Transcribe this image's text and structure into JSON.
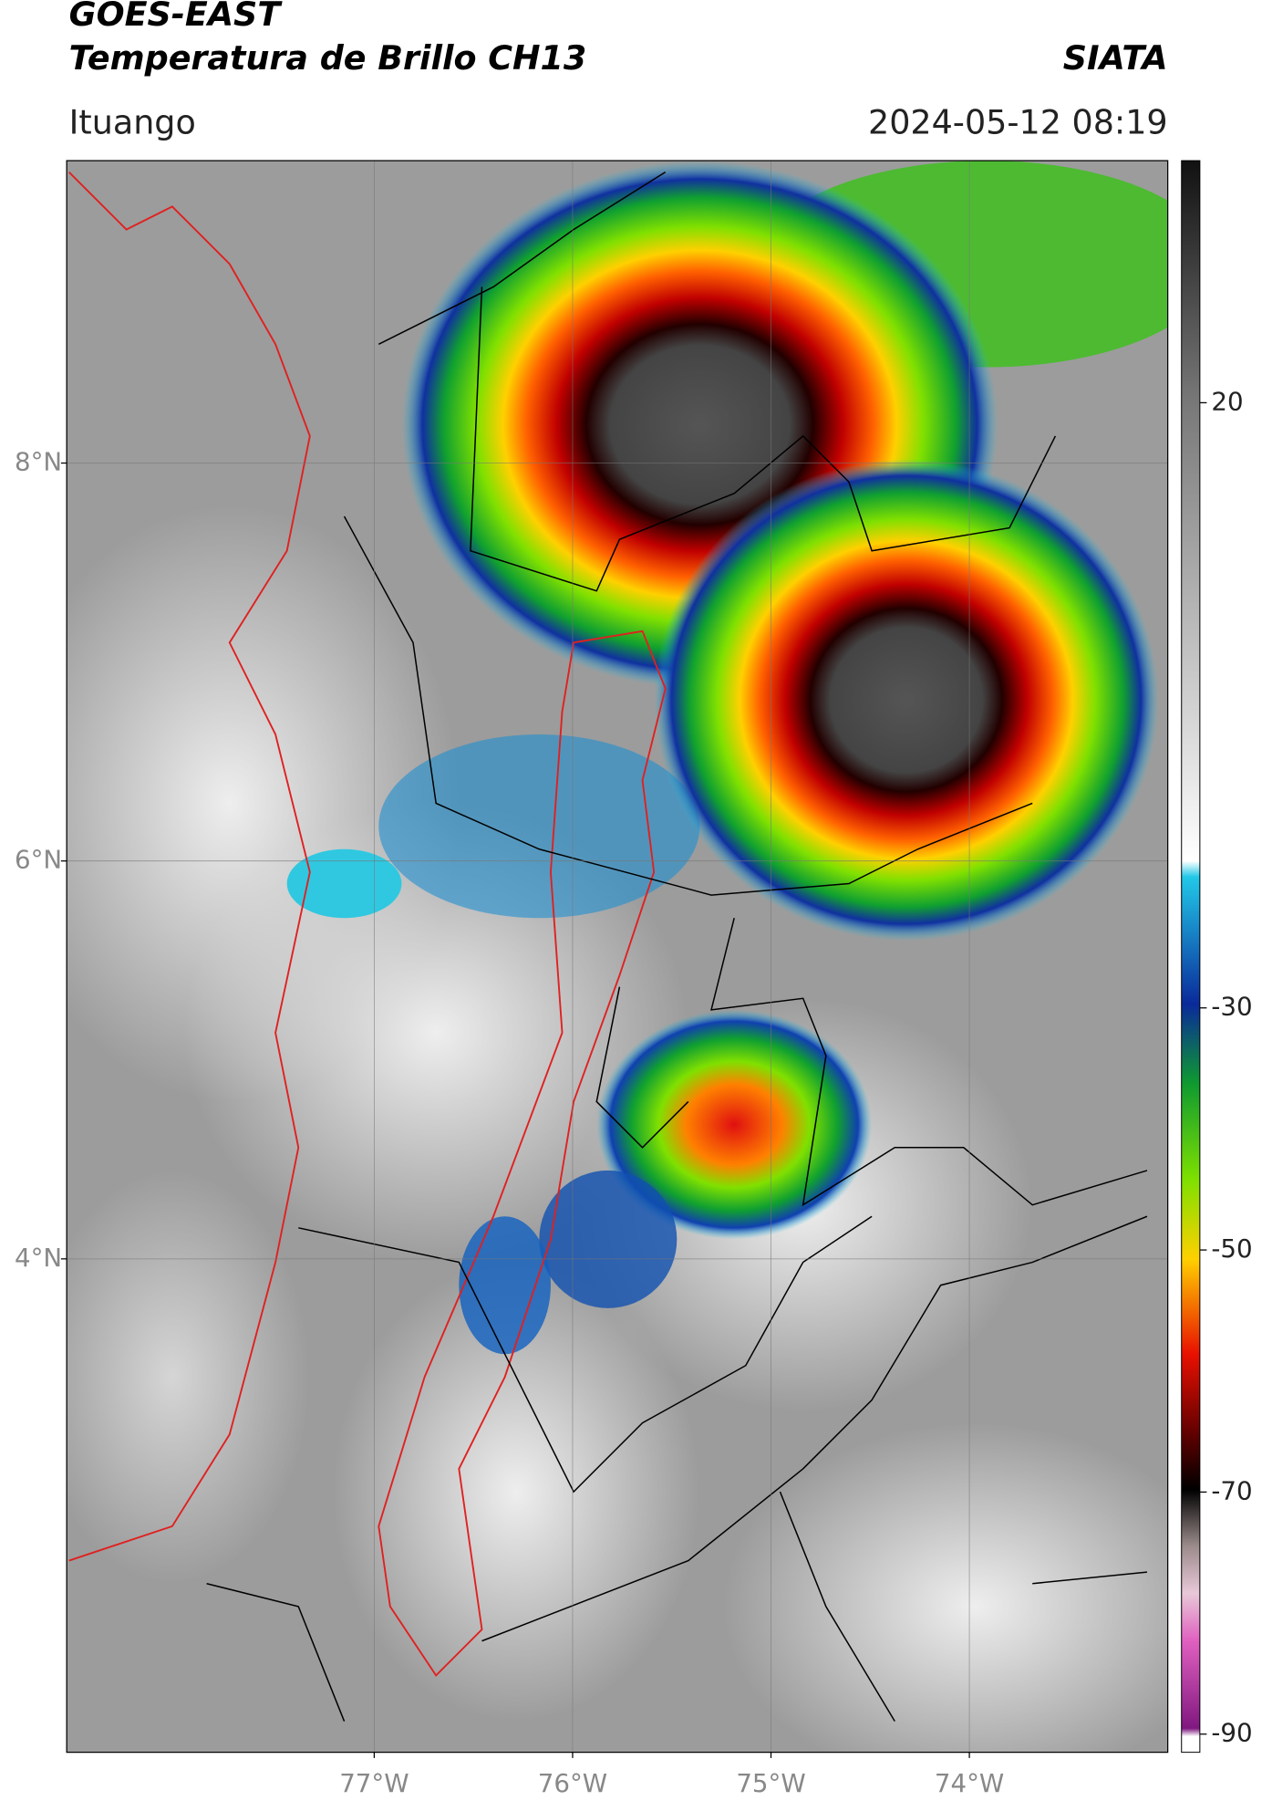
{
  "header": {
    "title_line1": "GOES-EAST",
    "title_line2": "Temperatura de Brillo CH13",
    "source": "SIATA",
    "location": "Ituango",
    "datetime": "2024-05-12 08:19"
  },
  "chart_data": {
    "type": "map",
    "xlim": [
      -78.55,
      -73.0
    ],
    "ylim": [
      1.52,
      9.52
    ],
    "xticks": [
      {
        "value": -77,
        "label": "77°W"
      },
      {
        "value": -76,
        "label": "76°W"
      },
      {
        "value": -75,
        "label": "75°W"
      },
      {
        "value": -74,
        "label": "74°W"
      }
    ],
    "yticks": [
      {
        "value": 8,
        "label": "8°N"
      },
      {
        "value": 6,
        "label": "6°N"
      },
      {
        "value": 4,
        "label": "4°N"
      }
    ],
    "grid": true,
    "colorbar": {
      "lim": [
        -91.5,
        40
      ],
      "ticks": [
        20,
        -30,
        -50,
        -70,
        -90
      ]
    }
  }
}
